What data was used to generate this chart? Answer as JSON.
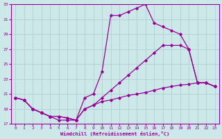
{
  "xlabel": "Windchill (Refroidissement éolien,°C)",
  "xlim": [
    -0.5,
    23.5
  ],
  "ylim": [
    17,
    33
  ],
  "xticks": [
    0,
    1,
    2,
    3,
    4,
    5,
    6,
    7,
    8,
    9,
    10,
    11,
    12,
    13,
    14,
    15,
    16,
    17,
    18,
    19,
    20,
    21,
    22,
    23
  ],
  "yticks": [
    17,
    19,
    21,
    23,
    25,
    27,
    29,
    31,
    33
  ],
  "bg_color": "#cce8e8",
  "line_color": "#990099",
  "grid_color": "#aacccc",
  "line1_x": [
    0,
    1,
    2,
    3,
    4,
    5,
    6,
    7,
    8,
    9,
    10,
    11,
    12,
    13,
    14,
    15,
    16,
    17,
    18,
    19,
    20,
    21,
    22,
    23
  ],
  "line1_y": [
    20.5,
    20.2,
    19.0,
    18.5,
    18.0,
    17.5,
    17.5,
    17.5,
    20.5,
    21.0,
    24.0,
    31.5,
    31.5,
    32.0,
    32.5,
    33.0,
    30.5,
    30.0,
    29.5,
    29.0,
    27.0,
    22.5,
    22.5,
    22.0
  ],
  "line2_x": [
    0,
    1,
    2,
    3,
    4,
    5,
    6,
    7,
    8,
    9,
    10,
    11,
    12,
    13,
    14,
    15,
    16,
    17,
    18,
    19,
    20,
    21,
    22,
    23
  ],
  "line2_y": [
    20.5,
    20.2,
    19.0,
    18.5,
    18.0,
    18.0,
    17.8,
    17.5,
    19.0,
    19.5,
    20.5,
    21.5,
    22.5,
    23.5,
    24.5,
    25.5,
    26.5,
    27.5,
    27.5,
    27.5,
    27.0,
    22.5,
    22.5,
    22.0
  ],
  "line3_x": [
    0,
    1,
    2,
    3,
    4,
    5,
    6,
    7,
    8,
    9,
    10,
    11,
    12,
    13,
    14,
    15,
    16,
    17,
    18,
    19,
    20,
    21,
    22,
    23
  ],
  "line3_y": [
    20.5,
    20.2,
    19.0,
    18.5,
    18.0,
    18.0,
    17.8,
    17.5,
    19.0,
    19.5,
    20.0,
    20.2,
    20.5,
    20.8,
    21.0,
    21.2,
    21.5,
    21.8,
    22.0,
    22.2,
    22.3,
    22.5,
    22.5,
    22.0
  ]
}
